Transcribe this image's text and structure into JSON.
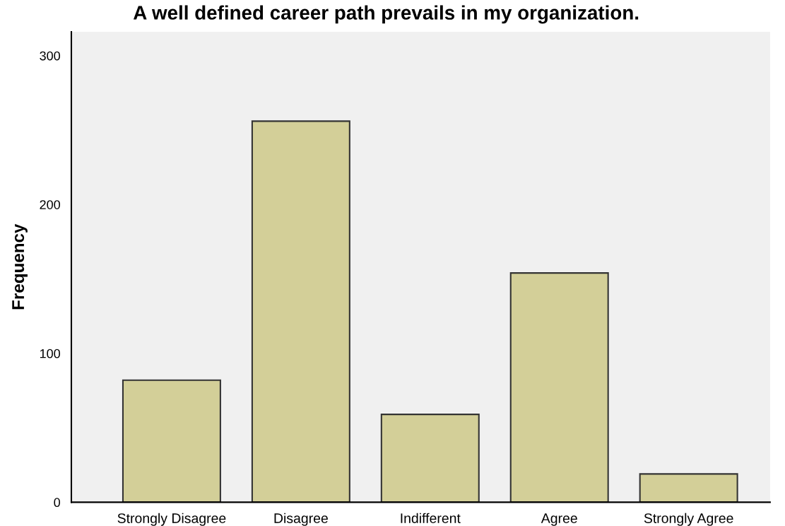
{
  "chart_data": {
    "type": "bar",
    "title": "A well defined career path prevails in my organization.",
    "ylabel": "Frequency",
    "categories": [
      "Strongly Disagree",
      "Disagree",
      "Indifferent",
      "Agree",
      "Strongly Agree"
    ],
    "values": [
      82,
      256,
      59,
      154,
      19
    ],
    "color": "#d3cf98",
    "ylim": [
      0,
      316
    ],
    "yticks": [
      0,
      100,
      200,
      300
    ]
  }
}
